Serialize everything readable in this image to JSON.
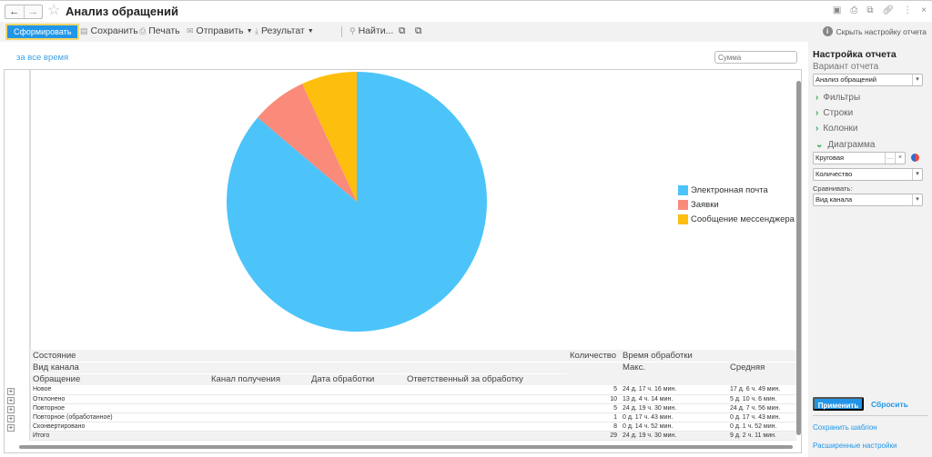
{
  "window": {
    "title": "Анализ обращений",
    "back_icon": "←",
    "forward_icon": "→",
    "favorite_icon": "☆",
    "icons": [
      "save-icon",
      "print-icon",
      "preview-icon",
      "link-icon",
      "more-icon",
      "close-icon"
    ]
  },
  "toolbar": {
    "generate_label": "Сформировать",
    "save_label": "Сохранить",
    "print_label": "Печать",
    "send_label": "Отправить",
    "result_label": "Результат",
    "find_label": "Найти...",
    "hide_settings_label": "Скрыть настройку отчета"
  },
  "report": {
    "period_label": "за все время",
    "sum_placeholder": "Сумма",
    "legend": [
      {
        "label": "Электронная почта",
        "color": "#4cc4fa"
      },
      {
        "label": "Заявки",
        "color": "#fa8a7a"
      },
      {
        "label": "Сообщение мессенджера",
        "color": "#fdbe0d"
      }
    ],
    "table": {
      "header": {
        "state": "Состояние",
        "channel_type": "Вид канала",
        "request": "Обращение",
        "channel": "Канал получения",
        "date": "Дата обработки",
        "responsible": "Ответственный за обработку",
        "count": "Количество",
        "time": "Время обработки",
        "max": "Макс.",
        "avg": "Средняя"
      },
      "rows": [
        {
          "name": "Новое",
          "count": "5",
          "max": "24 д. 17 ч. 16 мин.",
          "avg": "17 д. 6 ч. 49 мин."
        },
        {
          "name": "Отклонено",
          "count": "10",
          "max": "13 д. 4 ч. 14 мин.",
          "avg": "5 д. 10 ч. 6 мин."
        },
        {
          "name": "Повторное",
          "count": "5",
          "max": "24 д. 19 ч. 30 мин.",
          "avg": "24 д. 7 ч. 56 мин."
        },
        {
          "name": "Повторное (обработанное)",
          "count": "1",
          "max": "0 д. 17 ч. 43 мин.",
          "avg": "0 д. 17 ч. 43 мин."
        },
        {
          "name": "Сконвертировано",
          "count": "8",
          "max": "0 д. 14 ч. 52 мин.",
          "avg": "0 д. 1 ч. 52 мин."
        }
      ],
      "total": {
        "name": "Итого",
        "count": "29",
        "max": "24 д. 19 ч. 30 мин.",
        "avg": "9 д. 2 ч. 11 мин."
      }
    }
  },
  "chart_data": {
    "type": "pie",
    "title": "",
    "categories": [
      "Электронная почта",
      "Заявки",
      "Сообщение мессенджера"
    ],
    "values": [
      25,
      2,
      2
    ],
    "colors": [
      "#4cc4fa",
      "#fa8a7a",
      "#fdbe0d"
    ],
    "legend_position": "right"
  },
  "settings": {
    "title": "Настройка отчета",
    "variant_label": "Вариант отчета",
    "variant_value": "Анализ обращений",
    "sections": {
      "filters": "Фильтры",
      "rows": "Строки",
      "columns": "Колонки",
      "chart": "Диаграмма"
    },
    "chart_type": "Круговая",
    "chart_value": "Количество",
    "compare_label": "Сравнивать:",
    "compare_value": "Вид канала",
    "apply_label": "Применить",
    "reset_label": "Сбросить",
    "save_template_label": "Сохранить шаблон",
    "advanced_label": "Расширенные настройки"
  }
}
